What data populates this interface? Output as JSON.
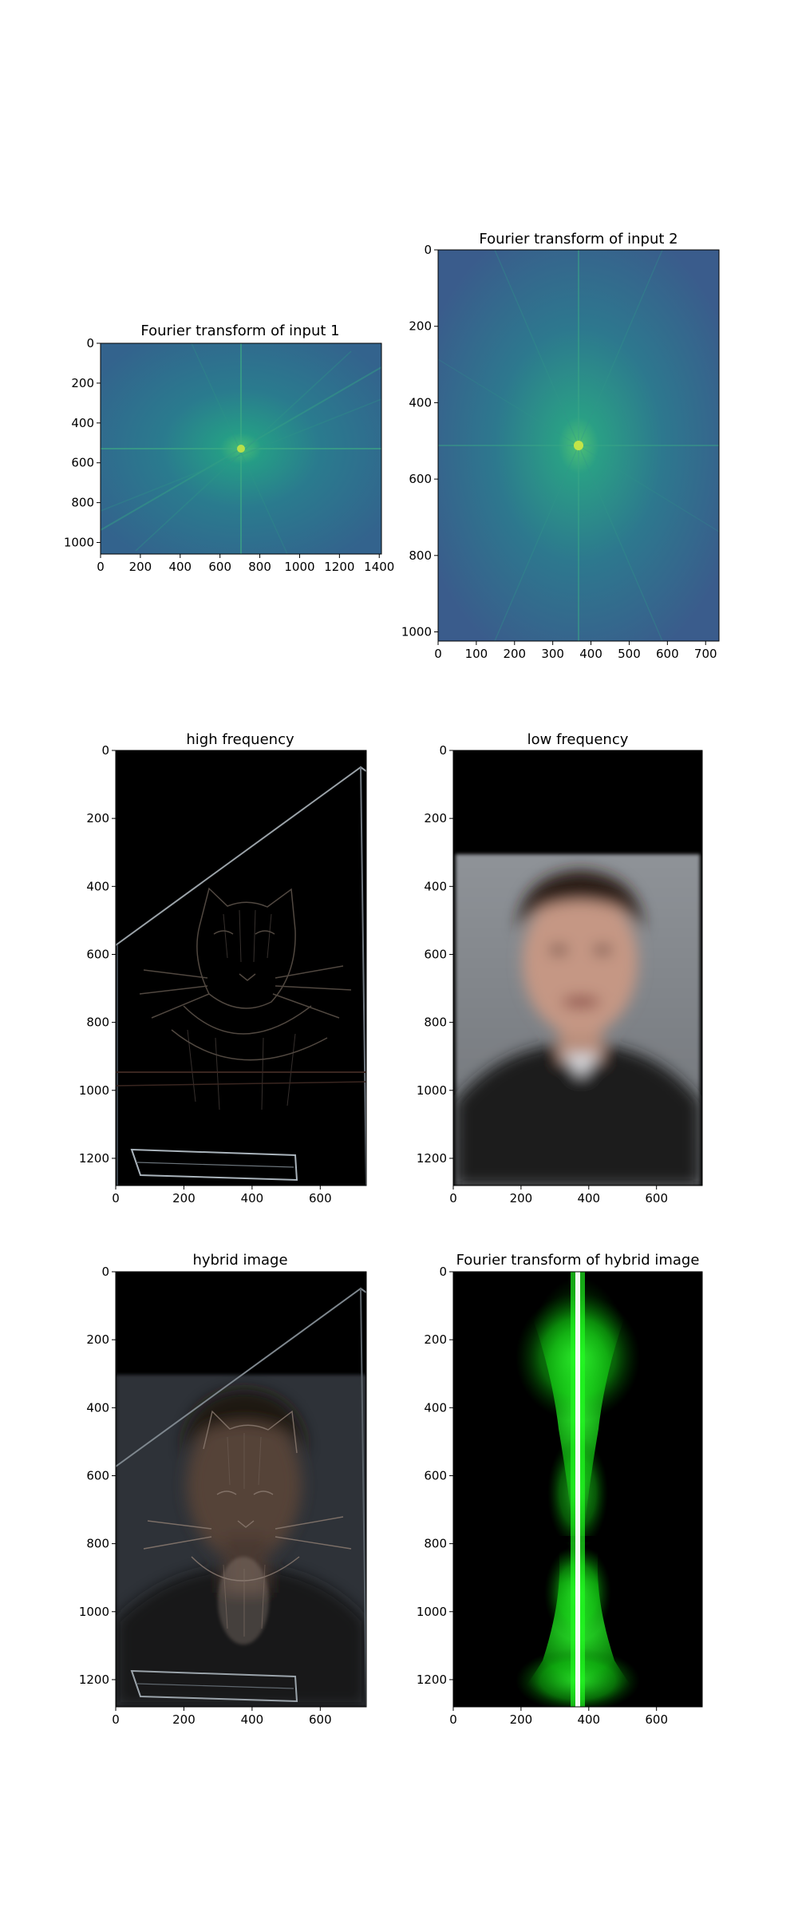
{
  "chart_data": [
    {
      "type": "heatmap",
      "title": "Fourier transform of input 1",
      "image_width": 1411,
      "image_height": 1058,
      "xticks": [
        0,
        200,
        400,
        600,
        800,
        1000,
        1200,
        1400
      ],
      "yticks": [
        0,
        200,
        400,
        600,
        800,
        1000
      ],
      "colormap": "viridis",
      "content": "log-magnitude spectrum, bright peak at center (~705, 529)"
    },
    {
      "type": "heatmap",
      "title": "Fourier transform of input 2",
      "image_width": 735,
      "image_height": 1024,
      "xticks": [
        0,
        100,
        200,
        300,
        400,
        500,
        600,
        700
      ],
      "yticks": [
        0,
        200,
        400,
        600,
        800,
        1000
      ],
      "colormap": "viridis",
      "content": "log-magnitude spectrum, bright peak at center (~367, 512)"
    },
    {
      "type": "heatmap",
      "title": "high frequency",
      "image_width": 735,
      "image_height": 1280,
      "xticks": [
        0,
        200,
        400,
        600
      ],
      "yticks": [
        0,
        200,
        400,
        600,
        800,
        1000,
        1200
      ],
      "content": "edge map of a cat (high-pass filtered)"
    },
    {
      "type": "heatmap",
      "title": "low frequency",
      "image_width": 735,
      "image_height": 1280,
      "xticks": [
        0,
        200,
        400,
        600
      ],
      "yticks": [
        0,
        200,
        400,
        600,
        800,
        1000,
        1200
      ],
      "content": "blurred portrait of a man (low-pass filtered)"
    },
    {
      "type": "heatmap",
      "title": "hybrid image",
      "image_width": 735,
      "image_height": 1280,
      "xticks": [
        0,
        200,
        400,
        600
      ],
      "yticks": [
        0,
        200,
        400,
        600,
        800,
        1000,
        1200
      ],
      "content": "sum of high and low frequency images"
    },
    {
      "type": "heatmap",
      "title": "Fourier transform of hybrid image",
      "image_width": 735,
      "image_height": 1280,
      "xticks": [
        0,
        200,
        400,
        600
      ],
      "yticks": [
        0,
        200,
        400,
        600,
        800,
        1000,
        1200
      ],
      "colormap": "green on black",
      "content": "spectrum with bright vertical band at x~367"
    }
  ]
}
